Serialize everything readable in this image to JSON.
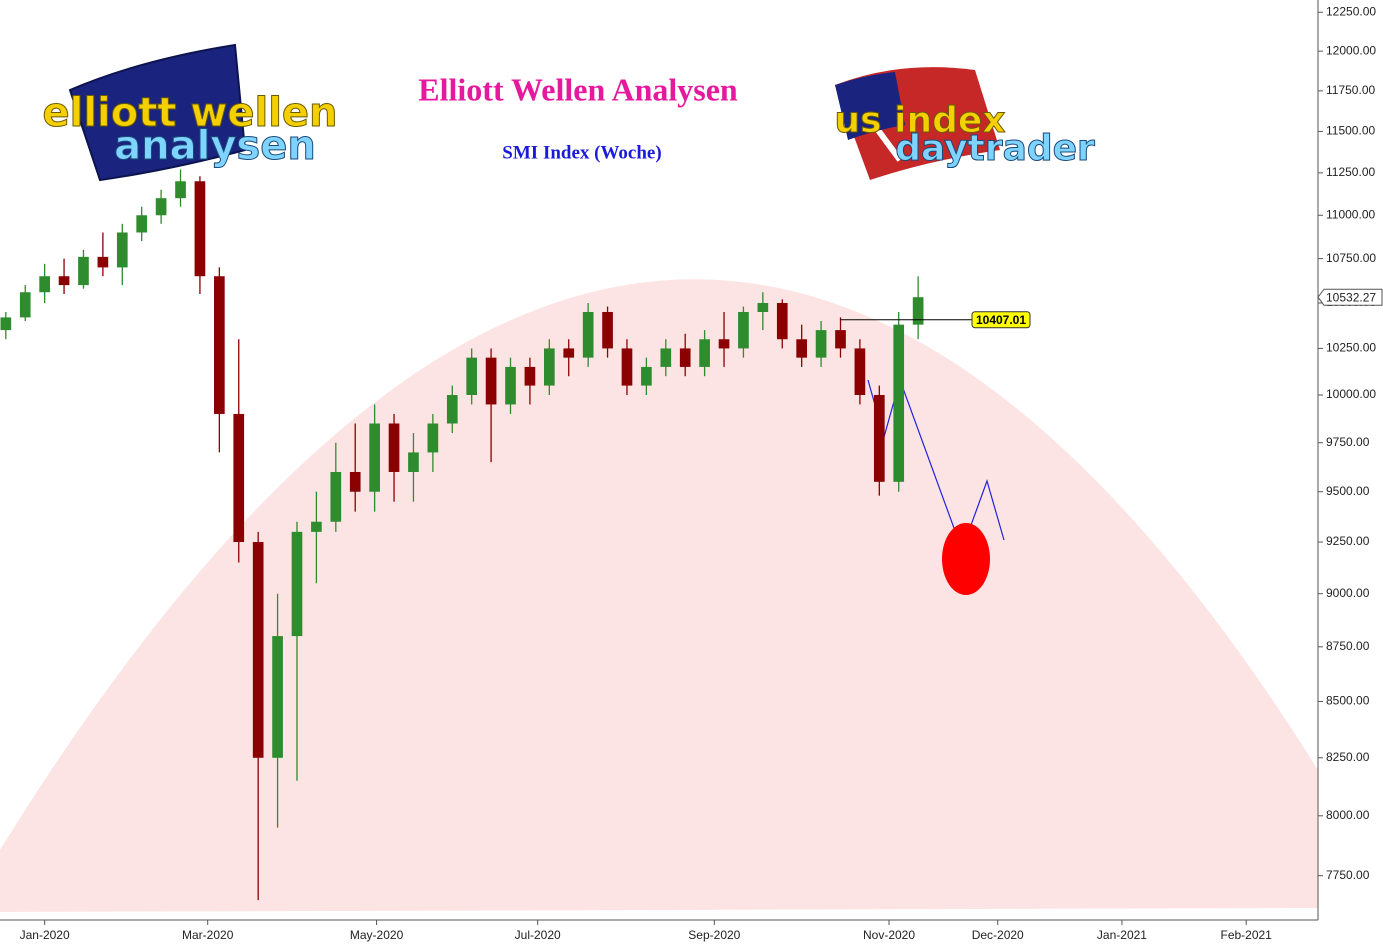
{
  "chart_data": {
    "type": "candlestick",
    "title": "Elliott Wellen Analysen",
    "subtitle": "SMI Index (Woche)",
    "logos": [
      [
        "elliott wellen",
        "analysen"
      ],
      [
        "us index",
        "daytrader"
      ]
    ],
    "x": [
      -2,
      -1,
      0,
      1,
      2,
      3,
      4,
      5,
      6,
      7,
      8,
      9,
      10,
      11,
      12,
      13,
      14,
      15,
      16,
      17,
      18,
      19,
      20,
      21,
      22,
      23,
      24,
      25,
      26,
      27,
      28,
      29,
      30,
      31,
      32,
      33,
      34,
      35,
      36,
      37,
      38,
      39,
      40,
      41,
      42,
      43,
      44,
      45
    ],
    "open": [
      10350,
      10420,
      10560,
      10650,
      10600,
      10760,
      10700,
      10900,
      11000,
      11100,
      11200,
      10650,
      9900,
      9250,
      8250,
      8800,
      9300,
      9350,
      9600,
      9500,
      9850,
      9600,
      9700,
      9850,
      10000,
      10200,
      9950,
      10150,
      10050,
      10250,
      10200,
      10450,
      10250,
      10050,
      10150,
      10250,
      10150,
      10300,
      10250,
      10450,
      10500,
      10300,
      10200,
      10350,
      10250,
      10000,
      9550,
      10380
    ],
    "high": [
      10450,
      10600,
      10720,
      10750,
      10800,
      10900,
      10950,
      11050,
      11150,
      11270,
      11230,
      10700,
      10300,
      9300,
      9000,
      9350,
      9500,
      9750,
      9850,
      9950,
      9900,
      9800,
      9900,
      10050,
      10250,
      10250,
      10200,
      10200,
      10300,
      10300,
      10500,
      10480,
      10300,
      10200,
      10300,
      10330,
      10350,
      10450,
      10480,
      10560,
      10520,
      10380,
      10400,
      10420,
      10300,
      10050,
      10450,
      10650
    ],
    "low": [
      10300,
      10400,
      10500,
      10550,
      10580,
      10650,
      10600,
      10850,
      10950,
      11050,
      10550,
      9700,
      9150,
      7650,
      7950,
      8150,
      9050,
      9300,
      9400,
      9400,
      9450,
      9450,
      9600,
      9800,
      9950,
      9650,
      9900,
      9950,
      10000,
      10100,
      10150,
      10200,
      10000,
      10000,
      10100,
      10100,
      10100,
      10150,
      10200,
      10350,
      10250,
      10150,
      10150,
      10200,
      9950,
      9480,
      9500,
      10300
    ],
    "close": [
      10420,
      10560,
      10650,
      10600,
      10760,
      10700,
      10900,
      11000,
      11100,
      11200,
      10650,
      9900,
      9250,
      8250,
      8800,
      9300,
      9350,
      9600,
      9500,
      9850,
      9600,
      9700,
      9850,
      10000,
      10200,
      9950,
      10150,
      10050,
      10250,
      10200,
      10450,
      10250,
      10050,
      10150,
      10250,
      10150,
      10300,
      10250,
      10450,
      10500,
      10300,
      10200,
      10350,
      10250,
      10000,
      9550,
      10380,
      10532.27
    ],
    "up_color": "#2e8b2e",
    "down_color": "#8b0000",
    "log_scale": true,
    "ylim": [
      7570,
      12330
    ],
    "yticks": [
      {
        "value": 7750,
        "label": "7750.00"
      },
      {
        "value": 8000,
        "label": "8000.00"
      },
      {
        "value": 8250,
        "label": "8250.00"
      },
      {
        "value": 8500,
        "label": "8500.00"
      },
      {
        "value": 8750,
        "label": "8750.00"
      },
      {
        "value": 9000,
        "label": "9000.00"
      },
      {
        "value": 9250,
        "label": "9250.00"
      },
      {
        "value": 9500,
        "label": "9500.00"
      },
      {
        "value": 9750,
        "label": "9750.00"
      },
      {
        "value": 10000,
        "label": "10000.00"
      },
      {
        "value": 10250,
        "label": "10250.00"
      },
      {
        "value": 10500,
        "label": "10500.00"
      },
      {
        "value": 10750,
        "label": "10750.00"
      },
      {
        "value": 11000,
        "label": "11000.00"
      },
      {
        "value": 11250,
        "label": "11250.00"
      },
      {
        "value": 11500,
        "label": "11500.00"
      },
      {
        "value": 11750,
        "label": "11750.00"
      },
      {
        "value": 12000,
        "label": "12000.00"
      },
      {
        "value": 12250,
        "label": "12250.00"
      }
    ],
    "xlim": [
      -2.3,
      65.6
    ],
    "xticks": [
      {
        "value": 0,
        "label": "Jan-2020"
      },
      {
        "value": 8.4,
        "label": "Mar-2020"
      },
      {
        "value": 17.1,
        "label": "May-2020"
      },
      {
        "value": 25.4,
        "label": "Jul-2020"
      },
      {
        "value": 34.5,
        "label": "Sep-2020"
      },
      {
        "value": 43.5,
        "label": "Nov-2020"
      },
      {
        "value": 49.1,
        "label": "Dec-2020"
      },
      {
        "value": 55.5,
        "label": "Jan-2021"
      },
      {
        "value": 61.9,
        "label": "Feb-2021"
      }
    ],
    "level": 10407.01,
    "last_price": 10532.27
  }
}
